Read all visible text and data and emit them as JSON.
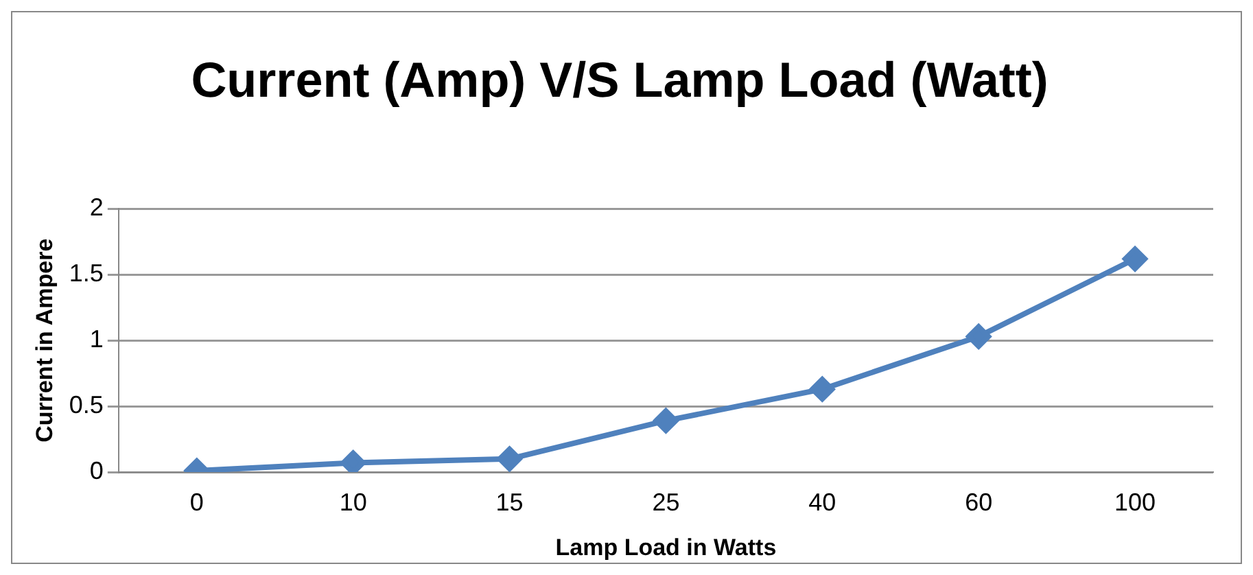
{
  "chart_data": {
    "type": "line",
    "title": "Current (Amp) V/S Lamp Load (Watt)",
    "xlabel": "Lamp Load in Watts",
    "ylabel": "Current in Ampere",
    "categories": [
      "0",
      "10",
      "15",
      "25",
      "40",
      "60",
      "100"
    ],
    "series": [
      {
        "color": "#4f81bd",
        "values": [
          0.01,
          0.07,
          0.1,
          0.39,
          0.63,
          1.03,
          1.62
        ]
      }
    ],
    "ylim": [
      0,
      2
    ],
    "yticks": [
      0,
      0.5,
      1,
      1.5,
      2
    ],
    "grid": "y",
    "marker": "diamond",
    "line_style": "solid",
    "legend": false
  }
}
